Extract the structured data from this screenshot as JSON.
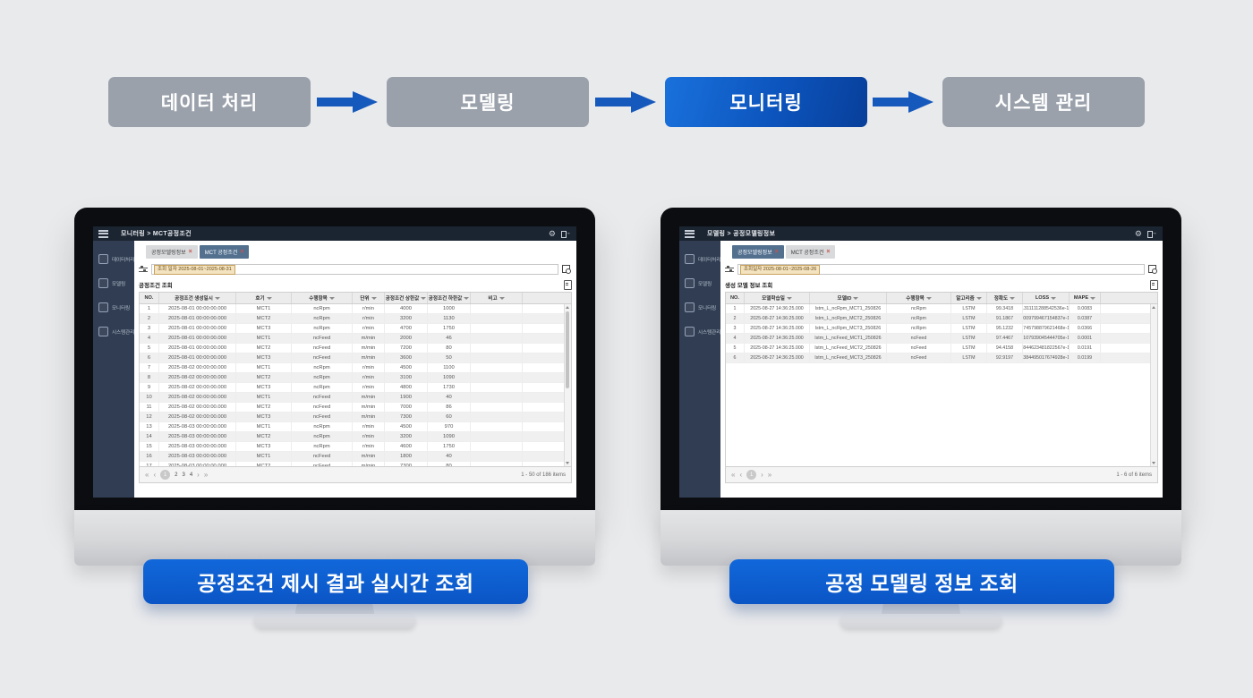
{
  "page": {
    "background": "#e9eaec"
  },
  "flow": {
    "arrow_color": "#1659bd",
    "steps": [
      {
        "label": "데이터 처리",
        "active": false
      },
      {
        "label": "모델링",
        "active": false
      },
      {
        "label": "모니터링",
        "active": true
      },
      {
        "label": "시스템 관리",
        "active": false
      }
    ]
  },
  "monitors": {
    "left": {
      "caption": "공정조건 제시 결과 실시간 조회",
      "app": {
        "titlebar": {
          "title": "모니터링 > MCT공정조건"
        },
        "sidebar": [
          {
            "label": "데이터처리",
            "icon": "data-processing-icon"
          },
          {
            "label": "모델링",
            "icon": "modeling-icon"
          },
          {
            "label": "모니터링",
            "icon": "monitoring-icon"
          },
          {
            "label": "시스템관리",
            "icon": "system-admin-icon"
          }
        ],
        "tabs": [
          {
            "label": "공정모델링정보",
            "active": false
          },
          {
            "label": "MCT 공정조건",
            "active": true
          }
        ],
        "filter": {
          "chip": "조회 일자 2025-08-01~2025-08-31"
        },
        "section_title": "공정조건 조회",
        "table": {
          "columns": [
            "NO.",
            "공정조건 생성일시",
            "호기",
            "수행항목",
            "단위",
            "공정조건 상한값",
            "공정조건 하한값",
            "비고"
          ],
          "rows": [
            [
              "1",
              "2025-08-01 00:00:00.000",
              "MCT1",
              "ncRpm",
              "r/min",
              "4000",
              "1000",
              ""
            ],
            [
              "2",
              "2025-08-01 00:00:00.000",
              "MCT2",
              "ncRpm",
              "r/min",
              "3200",
              "1130",
              ""
            ],
            [
              "3",
              "2025-08-01 00:00:00.000",
              "MCT3",
              "ncRpm",
              "r/min",
              "4700",
              "1750",
              ""
            ],
            [
              "4",
              "2025-08-01 00:00:00.000",
              "MCT1",
              "ncFeed",
              "m/min",
              "2000",
              "46",
              ""
            ],
            [
              "5",
              "2025-08-01 00:00:00.000",
              "MCT2",
              "ncFeed",
              "m/min",
              "7200",
              "80",
              ""
            ],
            [
              "6",
              "2025-08-01 00:00:00.000",
              "MCT3",
              "ncFeed",
              "m/min",
              "3600",
              "50",
              ""
            ],
            [
              "7",
              "2025-08-02 00:00:00.000",
              "MCT1",
              "ncRpm",
              "r/min",
              "4500",
              "1100",
              ""
            ],
            [
              "8",
              "2025-08-02 00:00:00.000",
              "MCT2",
              "ncRpm",
              "r/min",
              "3100",
              "1090",
              ""
            ],
            [
              "9",
              "2025-08-02 00:00:00.000",
              "MCT3",
              "ncRpm",
              "r/min",
              "4800",
              "1730",
              ""
            ],
            [
              "10",
              "2025-08-02 00:00:00.000",
              "MCT1",
              "ncFeed",
              "m/min",
              "1900",
              "40",
              ""
            ],
            [
              "11",
              "2025-08-02 00:00:00.000",
              "MCT2",
              "ncFeed",
              "m/min",
              "7000",
              "86",
              ""
            ],
            [
              "12",
              "2025-08-02 00:00:00.000",
              "MCT3",
              "ncFeed",
              "m/min",
              "7300",
              "60",
              ""
            ],
            [
              "13",
              "2025-08-03 00:00:00.000",
              "MCT1",
              "ncRpm",
              "r/min",
              "4500",
              "970",
              ""
            ],
            [
              "14",
              "2025-08-03 00:00:00.000",
              "MCT2",
              "ncRpm",
              "r/min",
              "3200",
              "1090",
              ""
            ],
            [
              "15",
              "2025-08-03 00:00:00.000",
              "MCT3",
              "ncRpm",
              "r/min",
              "4600",
              "1750",
              ""
            ],
            [
              "16",
              "2025-08-03 00:00:00.000",
              "MCT1",
              "ncFeed",
              "m/min",
              "1800",
              "40",
              ""
            ],
            [
              "17",
              "2025-08-03 00:00:00.000",
              "MCT2",
              "ncFeed",
              "m/min",
              "7300",
              "80",
              ""
            ]
          ]
        },
        "pagination": {
          "pages": [
            "1",
            "2",
            "3",
            "4"
          ],
          "active_page": "1",
          "info": "1 - 50 of 186 items"
        }
      }
    },
    "right": {
      "caption": "공정 모델링 정보 조회",
      "app": {
        "titlebar": {
          "title": "모델링 > 공정모델링정보"
        },
        "sidebar": [
          {
            "label": "데이터처리",
            "icon": "data-processing-icon"
          },
          {
            "label": "모델링",
            "icon": "modeling-icon"
          },
          {
            "label": "모니터링",
            "icon": "monitoring-icon"
          },
          {
            "label": "시스템관리",
            "icon": "system-admin-icon"
          }
        ],
        "tabs": [
          {
            "label": "공정모델링정보",
            "active": true
          },
          {
            "label": "MCT 공정조건",
            "active": false
          }
        ],
        "filter": {
          "chip": "조회일자 2025-08-01~2025-08-26"
        },
        "section_title": "생성 모델 정보 조회",
        "table": {
          "columns": [
            "NO.",
            "모델학습일",
            "모델ID",
            "수행항목",
            "알고리즘",
            "정확도",
            "LOSS",
            "MAPE"
          ],
          "rows": [
            [
              "1",
              "2025-08-27 14:36:25.000",
              "lstm_L_ncRpm_MCT1_250826",
              "ncRpm",
              "LSTM",
              "99.3418",
              "8.311111288542536e-16",
              "0.0083"
            ],
            [
              "2",
              "2025-08-27 14:36:25.000",
              "lstm_L_ncRpm_MCT2_250826",
              "ncRpm",
              "LSTM",
              "91.1867",
              "4.009799467154837e-16",
              "0.0387"
            ],
            [
              "3",
              "2025-08-27 14:36:25.000",
              "lstm_L_ncRpm_MCT3_250826",
              "ncRpm",
              "LSTM",
              "95.1232",
              "5.745798879621468e-16",
              "0.0366"
            ],
            [
              "4",
              "2025-08-27 14:36:25.000",
              "lstm_L_ncFeed_MCT1_250826",
              "ncFeed",
              "LSTM",
              "97.4467",
              "2.107939045444705e-16",
              "0.0001"
            ],
            [
              "5",
              "2025-08-27 14:36:25.000",
              "lstm_L_ncFeed_MCT2_250826",
              "ncFeed",
              "LSTM",
              "94.4158",
              "2.844623481822567e-16",
              "0.0191"
            ],
            [
              "6",
              "2025-08-27 14:36:25.000",
              "lstm_L_ncFeed_MCT3_250826",
              "ncFeed",
              "LSTM",
              "92.9197",
              "4.384495017674928e-16",
              "0.0199"
            ]
          ]
        },
        "pagination": {
          "pages": [
            "1"
          ],
          "active_page": "1",
          "info": "1 - 6 of 6 items"
        }
      }
    }
  }
}
